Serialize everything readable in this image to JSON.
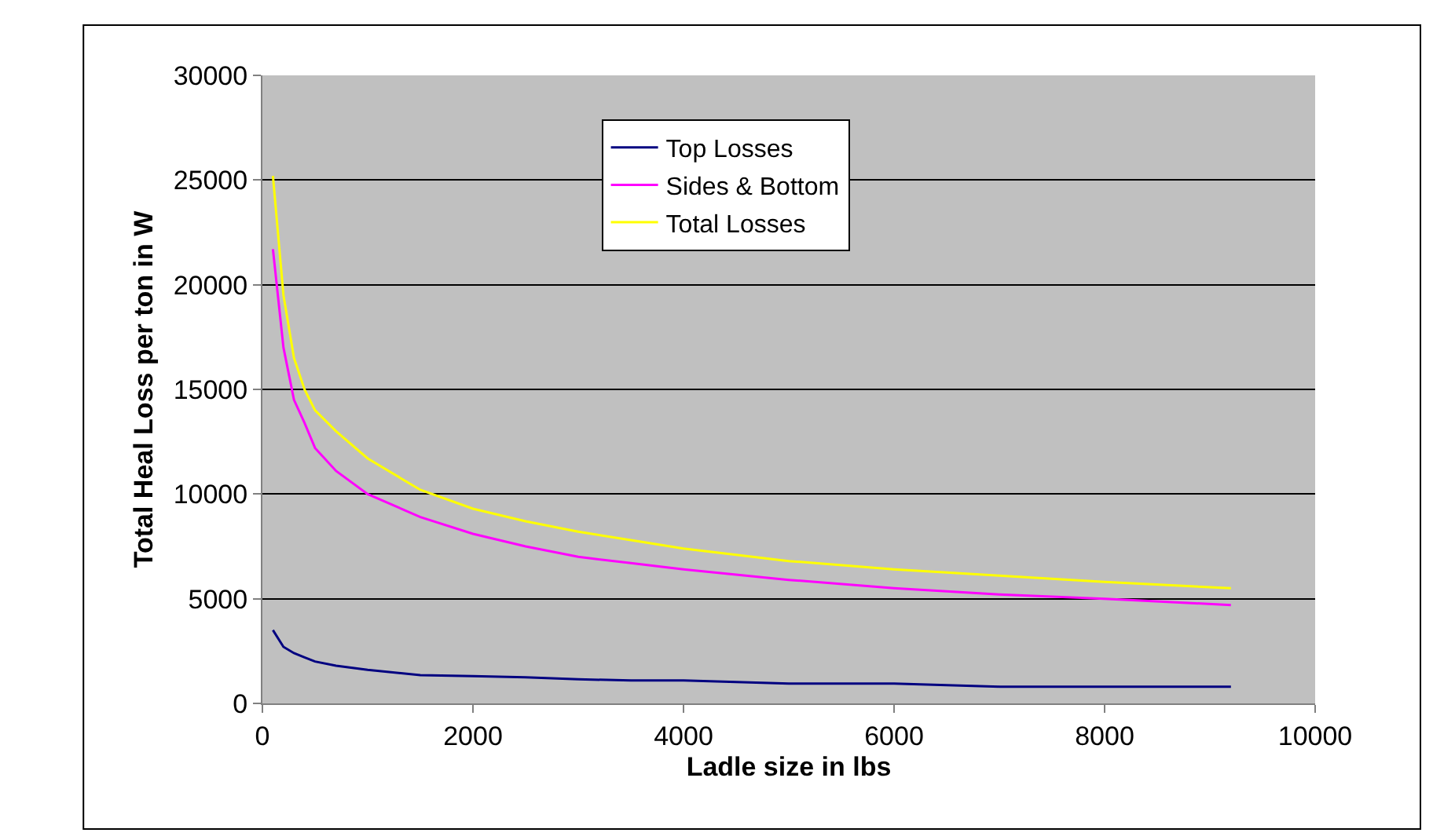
{
  "chart_data": {
    "type": "line",
    "xlabel": "Ladle size in lbs",
    "ylabel": "Total Heal Loss per ton in W",
    "x": [
      100,
      200,
      300,
      400,
      500,
      700,
      1000,
      1500,
      2000,
      2500,
      3000,
      3500,
      4000,
      5000,
      6000,
      7000,
      8000,
      9200
    ],
    "series": [
      {
        "name": "Top Losses",
        "color": "#000080",
        "values": [
          3500,
          2700,
          2400,
          2200,
          2000,
          1800,
          1600,
          1350,
          1300,
          1250,
          1150,
          1100,
          1100,
          950,
          950,
          800,
          800,
          800
        ]
      },
      {
        "name": "Sides & Bottom",
        "color": "#ff00ff",
        "values": [
          21700,
          17000,
          14500,
          13400,
          12200,
          11100,
          10000,
          8900,
          8100,
          7500,
          7000,
          6700,
          6400,
          5900,
          5500,
          5200,
          5000,
          4700
        ]
      },
      {
        "name": "Total Losses",
        "color": "#ffff00",
        "values": [
          25200,
          19500,
          16500,
          15000,
          14000,
          13000,
          11700,
          10200,
          9300,
          8700,
          8200,
          7800,
          7400,
          6800,
          6400,
          6100,
          5800,
          5500
        ]
      }
    ],
    "xlim": [
      0,
      10000
    ],
    "xticks": [
      0,
      2000,
      4000,
      6000,
      8000,
      10000
    ],
    "ylim": [
      0,
      30000
    ],
    "yticks": [
      0,
      5000,
      10000,
      15000,
      20000,
      25000,
      30000
    ],
    "grid": "y",
    "legend": "top",
    "marker": "none",
    "line_style": "solid"
  }
}
